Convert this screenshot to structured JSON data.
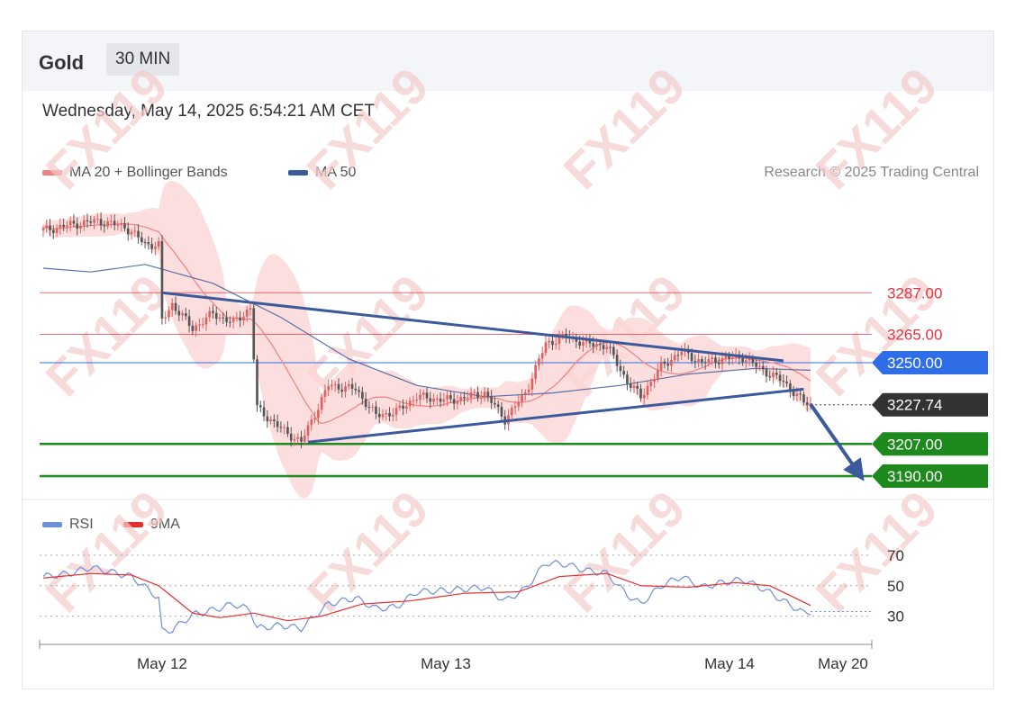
{
  "header": {
    "symbol": "Gold",
    "timeframe": "30 MIN",
    "date": "Wednesday, May 14, 2025 6:54:21 AM CET"
  },
  "legend": {
    "ma20": "MA 20 + Bollinger Bands",
    "ma50": "MA 50",
    "credit": "Research © 2025 Trading Central",
    "rsi": "RSI",
    "rsi_ma": "9MA"
  },
  "watermark": "FX119",
  "colors": {
    "ma20": "#f08080",
    "ma50": "#3a5a9c",
    "band_fill": "#fbd6d6",
    "up_candle": "#e06060",
    "down_candle": "#555555",
    "resistance": "#e8303c",
    "pivot": "#2f6ee6",
    "support": "#1e8a1e",
    "current": "#333333",
    "trendline": "#3a5a9c",
    "rsi_line": "#6f8fdc",
    "rsi_ma_line": "#e63030"
  },
  "chart_data": [
    {
      "type": "candlestick",
      "title": "Gold 30 MIN",
      "ylim": [
        3180,
        3330
      ],
      "x_ticks": [
        "May 12",
        "May 13",
        "May 14",
        "May 20"
      ],
      "levels": [
        {
          "label": "3287.00",
          "value": 3287.0,
          "kind": "resistance"
        },
        {
          "label": "3265.00",
          "value": 3265.0,
          "kind": "resistance"
        },
        {
          "label": "3250.00",
          "value": 3250.0,
          "kind": "pivot"
        },
        {
          "label": "3227.74",
          "value": 3227.74,
          "kind": "current"
        },
        {
          "label": "3207.00",
          "value": 3207.0,
          "kind": "support"
        },
        {
          "label": "3190.00",
          "value": 3190.0,
          "kind": "support"
        }
      ],
      "anchors": [
        {
          "t": 0,
          "price": 3320
        },
        {
          "t": 8,
          "price": 3323
        },
        {
          "t": 16,
          "price": 3325
        },
        {
          "t": 24,
          "price": 3322
        },
        {
          "t": 30,
          "price": 3313
        },
        {
          "t": 34,
          "price": 3312
        },
        {
          "t": 35,
          "price": 3272
        },
        {
          "t": 38,
          "price": 3281
        },
        {
          "t": 44,
          "price": 3268
        },
        {
          "t": 50,
          "price": 3276
        },
        {
          "t": 56,
          "price": 3271
        },
        {
          "t": 61,
          "price": 3279
        },
        {
          "t": 63,
          "price": 3226
        },
        {
          "t": 70,
          "price": 3215
        },
        {
          "t": 76,
          "price": 3208
        },
        {
          "t": 84,
          "price": 3238
        },
        {
          "t": 92,
          "price": 3236
        },
        {
          "t": 98,
          "price": 3222
        },
        {
          "t": 104,
          "price": 3224
        },
        {
          "t": 110,
          "price": 3232
        },
        {
          "t": 120,
          "price": 3230
        },
        {
          "t": 130,
          "price": 3234
        },
        {
          "t": 136,
          "price": 3220
        },
        {
          "t": 142,
          "price": 3234
        },
        {
          "t": 148,
          "price": 3260
        },
        {
          "t": 154,
          "price": 3264
        },
        {
          "t": 160,
          "price": 3260
        },
        {
          "t": 166,
          "price": 3259
        },
        {
          "t": 172,
          "price": 3240
        },
        {
          "t": 176,
          "price": 3232
        },
        {
          "t": 182,
          "price": 3248
        },
        {
          "t": 188,
          "price": 3256
        },
        {
          "t": 194,
          "price": 3250
        },
        {
          "t": 200,
          "price": 3252
        },
        {
          "t": 206,
          "price": 3253
        },
        {
          "t": 212,
          "price": 3246
        },
        {
          "t": 218,
          "price": 3240
        },
        {
          "t": 224,
          "price": 3229
        },
        {
          "t": 226,
          "price": 3228
        }
      ],
      "ma50_points": [
        {
          "t": 0,
          "price": 3300
        },
        {
          "t": 14,
          "price": 3298
        },
        {
          "t": 30,
          "price": 3302
        },
        {
          "t": 50,
          "price": 3292
        },
        {
          "t": 70,
          "price": 3274
        },
        {
          "t": 90,
          "price": 3252
        },
        {
          "t": 110,
          "price": 3238
        },
        {
          "t": 130,
          "price": 3232
        },
        {
          "t": 150,
          "price": 3234
        },
        {
          "t": 170,
          "price": 3238
        },
        {
          "t": 190,
          "price": 3244
        },
        {
          "t": 210,
          "price": 3247
        },
        {
          "t": 226,
          "price": 3246
        }
      ],
      "trendlines": [
        {
          "from": {
            "t": 35,
            "price": 3287
          },
          "to": {
            "t": 218,
            "price": 3251
          }
        },
        {
          "from": {
            "t": 78,
            "price": 3208
          },
          "to": {
            "t": 224,
            "price": 3236
          }
        }
      ],
      "forecast_arrow": {
        "from": {
          "t": 226,
          "price": 3228
        },
        "to": {
          "t": 240,
          "price": 3192
        }
      }
    },
    {
      "type": "line",
      "title": "RSI",
      "ylim": [
        15,
        80
      ],
      "y_ticks": [
        "70",
        "50",
        "30"
      ],
      "guides": [
        70,
        50,
        30
      ],
      "rsi": [
        {
          "t": 0,
          "v": 56
        },
        {
          "t": 8,
          "v": 58
        },
        {
          "t": 14,
          "v": 62
        },
        {
          "t": 20,
          "v": 59
        },
        {
          "t": 26,
          "v": 56
        },
        {
          "t": 30,
          "v": 49
        },
        {
          "t": 34,
          "v": 42
        },
        {
          "t": 35,
          "v": 20
        },
        {
          "t": 38,
          "v": 21
        },
        {
          "t": 44,
          "v": 31
        },
        {
          "t": 50,
          "v": 34
        },
        {
          "t": 56,
          "v": 38
        },
        {
          "t": 61,
          "v": 34
        },
        {
          "t": 63,
          "v": 22
        },
        {
          "t": 70,
          "v": 24
        },
        {
          "t": 76,
          "v": 22
        },
        {
          "t": 84,
          "v": 38
        },
        {
          "t": 92,
          "v": 42
        },
        {
          "t": 98,
          "v": 35
        },
        {
          "t": 104,
          "v": 36
        },
        {
          "t": 110,
          "v": 46
        },
        {
          "t": 120,
          "v": 47
        },
        {
          "t": 130,
          "v": 49
        },
        {
          "t": 136,
          "v": 40
        },
        {
          "t": 142,
          "v": 48
        },
        {
          "t": 148,
          "v": 65
        },
        {
          "t": 154,
          "v": 64
        },
        {
          "t": 160,
          "v": 60
        },
        {
          "t": 166,
          "v": 58
        },
        {
          "t": 172,
          "v": 44
        },
        {
          "t": 176,
          "v": 38
        },
        {
          "t": 182,
          "v": 50
        },
        {
          "t": 188,
          "v": 56
        },
        {
          "t": 194,
          "v": 49
        },
        {
          "t": 200,
          "v": 52
        },
        {
          "t": 206,
          "v": 54
        },
        {
          "t": 212,
          "v": 48
        },
        {
          "t": 218,
          "v": 40
        },
        {
          "t": 224,
          "v": 32
        },
        {
          "t": 226,
          "v": 33
        }
      ],
      "rsi_ma": [
        {
          "t": 0,
          "v": 55
        },
        {
          "t": 14,
          "v": 58
        },
        {
          "t": 26,
          "v": 57
        },
        {
          "t": 34,
          "v": 50
        },
        {
          "t": 44,
          "v": 32
        },
        {
          "t": 52,
          "v": 29
        },
        {
          "t": 62,
          "v": 32
        },
        {
          "t": 72,
          "v": 27
        },
        {
          "t": 82,
          "v": 30
        },
        {
          "t": 94,
          "v": 38
        },
        {
          "t": 108,
          "v": 40
        },
        {
          "t": 124,
          "v": 45
        },
        {
          "t": 140,
          "v": 46
        },
        {
          "t": 152,
          "v": 56
        },
        {
          "t": 166,
          "v": 58
        },
        {
          "t": 176,
          "v": 50
        },
        {
          "t": 190,
          "v": 49
        },
        {
          "t": 204,
          "v": 52
        },
        {
          "t": 214,
          "v": 50
        },
        {
          "t": 226,
          "v": 37
        }
      ]
    }
  ]
}
